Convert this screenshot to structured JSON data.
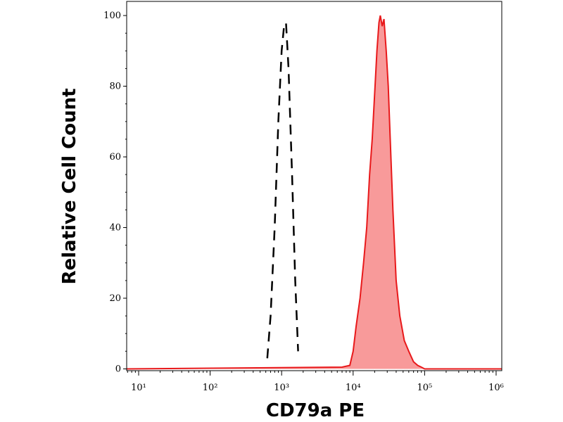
{
  "chart_data": {
    "type": "histogram-overlay",
    "xlabel": "CD79a PE",
    "ylabel": "Relative Cell Count",
    "xscale": "log",
    "xlim": [
      6.8,
      1200000
    ],
    "ylim": [
      -0.5,
      104
    ],
    "xticks": [
      {
        "value": 10,
        "label": "10¹"
      },
      {
        "value": 100,
        "label": "10²"
      },
      {
        "value": 1000,
        "label": "10³"
      },
      {
        "value": 10000,
        "label": "10⁴"
      },
      {
        "value": 100000,
        "label": "10⁵"
      },
      {
        "value": 1000000,
        "label": "10⁶"
      }
    ],
    "yticks": [
      0,
      20,
      40,
      60,
      80,
      100
    ],
    "series": [
      {
        "color": "#000000",
        "dashed": true,
        "x": [
          630,
          700,
          800,
          900,
          1000,
          1080,
          1150,
          1250,
          1400,
          1550,
          1700
        ],
        "values": [
          3,
          15,
          40,
          70,
          90,
          97,
          98,
          85,
          55,
          25,
          5
        ]
      },
      {
        "color": "#e8191b",
        "fill": "#f89a9a",
        "x": [
          6.8,
          7000,
          9000,
          10000,
          11000,
          12500,
          14000,
          15500,
          17000,
          18500,
          20000,
          21500,
          23000,
          24000,
          25500,
          27000,
          29000,
          31000,
          33000,
          36000,
          40000,
          45000,
          52000,
          60000,
          70000,
          80000,
          90000,
          100000,
          1200000
        ],
        "values": [
          0,
          0.5,
          1,
          5,
          12,
          20,
          30,
          40,
          55,
          65,
          78,
          90,
          98,
          100,
          97,
          99,
          90,
          80,
          65,
          45,
          25,
          15,
          8,
          5,
          2,
          1,
          0.5,
          0,
          0
        ]
      }
    ]
  }
}
